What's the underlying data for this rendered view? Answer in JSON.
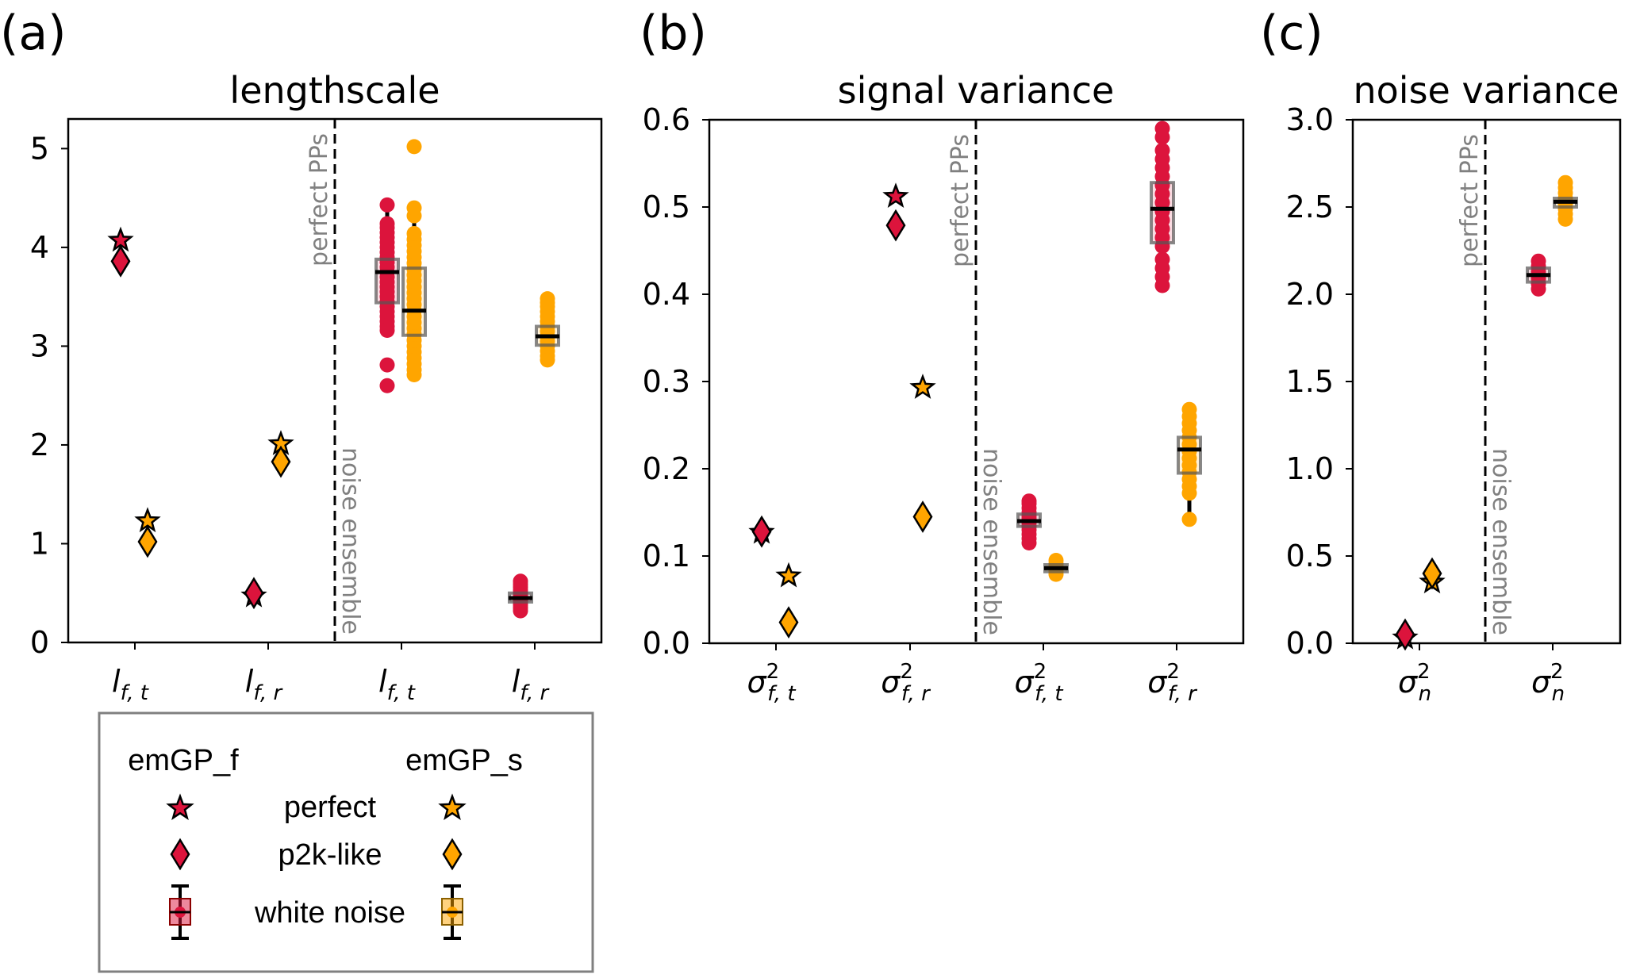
{
  "figure": {
    "panel_labels": [
      "(a)",
      "(b)",
      "(c)"
    ],
    "region_labels": {
      "left": "perfect PPs",
      "right": "noise ensemble"
    },
    "colors": {
      "emGP_f": "#DC143C",
      "emGP_s": "#FFA500",
      "box_edge": "#555555",
      "divider": "#000000",
      "region_text": "#808080",
      "legend_border": "#808080"
    }
  },
  "legend": {
    "col_headers": [
      "emGP_f",
      "emGP_s"
    ],
    "rows": [
      {
        "label": "perfect",
        "marker": "star-icon"
      },
      {
        "label": "p2k-like",
        "marker": "diamond-icon"
      },
      {
        "label": "white noise",
        "marker": "boxplot-icon"
      }
    ]
  },
  "chart_data": [
    {
      "type": "scatter+box",
      "panel": "(a)",
      "title": "lengthscale",
      "ylim": [
        0,
        5.3
      ],
      "yticks": [
        0,
        1,
        2,
        3,
        4,
        5
      ],
      "ytick_labels": [
        "0",
        "1",
        "2",
        "3",
        "4",
        "5"
      ],
      "categories": [
        {
          "base": "l",
          "sub": "f, t",
          "sup": ""
        },
        {
          "base": "l",
          "sub": "f, r",
          "sup": ""
        },
        {
          "base": "l",
          "sub": "f, t",
          "sup": ""
        },
        {
          "base": "l",
          "sub": "f, r",
          "sup": ""
        }
      ],
      "divider_after_category": 2,
      "scatter": {
        "emGP_f": {
          "perfect": [
            4.07,
            0.47
          ],
          "p2k-like": [
            3.86,
            0.5
          ]
        },
        "emGP_s": {
          "perfect": [
            1.23,
            2.01
          ],
          "p2k-like": [
            1.02,
            1.83
          ]
        }
      },
      "white_noise": {
        "emGP_f": [
          {
            "q1": 3.44,
            "median": 3.75,
            "q3": 3.88,
            "whisker_low": 3.16,
            "whisker_high": 4.43,
            "points": [
              2.6,
              2.81,
              3.16,
              3.2,
              3.25,
              3.3,
              3.35,
              3.4,
              3.45,
              3.5,
              3.55,
              3.6,
              3.65,
              3.7,
              3.75,
              3.8,
              3.85,
              3.9,
              3.95,
              4.0,
              4.05,
              4.1,
              4.15,
              4.2,
              4.24,
              4.43
            ]
          },
          {
            "q1": 0.41,
            "median": 0.45,
            "q3": 0.5,
            "whisker_low": 0.32,
            "whisker_high": 0.62,
            "points": [
              0.32,
              0.35,
              0.38,
              0.41,
              0.43,
              0.45,
              0.47,
              0.5,
              0.53,
              0.56,
              0.59,
              0.62
            ]
          }
        ],
        "emGP_s": [
          {
            "q1": 3.11,
            "median": 3.36,
            "q3": 3.79,
            "whisker_low": 2.71,
            "whisker_high": 4.42,
            "points": [
              2.71,
              2.76,
              2.82,
              2.88,
              2.94,
              3.0,
              3.06,
              3.12,
              3.18,
              3.24,
              3.3,
              3.36,
              3.42,
              3.48,
              3.54,
              3.6,
              3.66,
              3.72,
              3.78,
              3.84,
              3.9,
              3.96,
              4.02,
              4.08,
              4.14,
              4.32,
              4.4,
              5.02
            ]
          },
          {
            "q1": 3.01,
            "median": 3.1,
            "q3": 3.2,
            "whisker_low": 2.86,
            "whisker_high": 3.48,
            "points": [
              2.86,
              2.9,
              2.95,
              3.0,
              3.05,
              3.1,
              3.15,
              3.2,
              3.25,
              3.3,
              3.35,
              3.4,
              3.44,
              3.48
            ]
          }
        ]
      }
    },
    {
      "type": "scatter+box",
      "panel": "(b)",
      "title": "signal variance",
      "ylim": [
        0,
        0.6
      ],
      "yticks": [
        0,
        0.1,
        0.2,
        0.3,
        0.4,
        0.5,
        0.6
      ],
      "ytick_labels": [
        "0.0",
        "0.1",
        "0.2",
        "0.3",
        "0.4",
        "0.5",
        "0.6"
      ],
      "categories": [
        {
          "base": "σ",
          "sub": "f, t",
          "sup": "2"
        },
        {
          "base": "σ",
          "sub": "f, r",
          "sup": "2"
        },
        {
          "base": "σ",
          "sub": "f, t",
          "sup": "2"
        },
        {
          "base": "σ",
          "sub": "f, r",
          "sup": "2"
        }
      ],
      "divider_after_category": 2,
      "scatter": {
        "emGP_f": {
          "perfect": [
            0.127,
            0.512
          ],
          "p2k-like": [
            0.128,
            0.479
          ]
        },
        "emGP_s": {
          "perfect": [
            0.077,
            0.293
          ],
          "p2k-like": [
            0.024,
            0.145
          ]
        }
      },
      "white_noise": {
        "emGP_f": [
          {
            "q1": 0.134,
            "median": 0.14,
            "q3": 0.148,
            "whisker_low": 0.115,
            "whisker_high": 0.163,
            "points": [
              0.115,
              0.12,
              0.125,
              0.13,
              0.134,
              0.138,
              0.14,
              0.143,
              0.146,
              0.15,
              0.155,
              0.16,
              0.163
            ]
          },
          {
            "q1": 0.459,
            "median": 0.498,
            "q3": 0.528,
            "whisker_low": 0.41,
            "whisker_high": 0.59,
            "points": [
              0.41,
              0.42,
              0.43,
              0.44,
              0.455,
              0.465,
              0.475,
              0.485,
              0.495,
              0.505,
              0.515,
              0.525,
              0.535,
              0.545,
              0.555,
              0.565,
              0.58,
              0.59
            ]
          }
        ],
        "emGP_s": [
          {
            "q1": 0.082,
            "median": 0.086,
            "q3": 0.09,
            "whisker_low": 0.079,
            "whisker_high": 0.095,
            "points": [
              0.079,
              0.082,
              0.085,
              0.088,
              0.091,
              0.095
            ]
          },
          {
            "q1": 0.195,
            "median": 0.222,
            "q3": 0.236,
            "whisker_low": 0.142,
            "whisker_high": 0.268,
            "points": [
              0.142,
              0.172,
              0.18,
              0.188,
              0.196,
              0.204,
              0.212,
              0.22,
              0.228,
              0.236,
              0.244,
              0.252,
              0.26,
              0.268
            ]
          }
        ]
      }
    },
    {
      "type": "scatter+box",
      "panel": "(c)",
      "title": "noise variance",
      "ylim": [
        0,
        3.0
      ],
      "yticks": [
        0,
        0.5,
        1.0,
        1.5,
        2.0,
        2.5,
        3.0
      ],
      "ytick_labels": [
        "0.0",
        "0.5",
        "1.0",
        "1.5",
        "2.0",
        "2.5",
        "3.0"
      ],
      "categories": [
        {
          "base": "σ",
          "sub": "n",
          "sup": "2"
        },
        {
          "base": "σ",
          "sub": "n",
          "sup": "2"
        }
      ],
      "divider_after_category": 1,
      "scatter": {
        "emGP_f": {
          "perfect": [
            0.03
          ],
          "p2k-like": [
            0.05
          ]
        },
        "emGP_s": {
          "perfect": [
            0.35
          ],
          "p2k-like": [
            0.4
          ]
        }
      },
      "white_noise": {
        "emGP_f": [
          {
            "q1": 2.07,
            "median": 2.11,
            "q3": 2.15,
            "whisker_low": 2.03,
            "whisker_high": 2.19,
            "points": [
              2.03,
              2.06,
              2.09,
              2.11,
              2.13,
              2.16,
              2.19
            ]
          }
        ],
        "emGP_s": [
          {
            "q1": 2.5,
            "median": 2.53,
            "q3": 2.55,
            "whisker_low": 2.43,
            "whisker_high": 2.64,
            "points": [
              2.43,
              2.46,
              2.49,
              2.52,
              2.55,
              2.58,
              2.61,
              2.64
            ]
          }
        ]
      }
    }
  ]
}
